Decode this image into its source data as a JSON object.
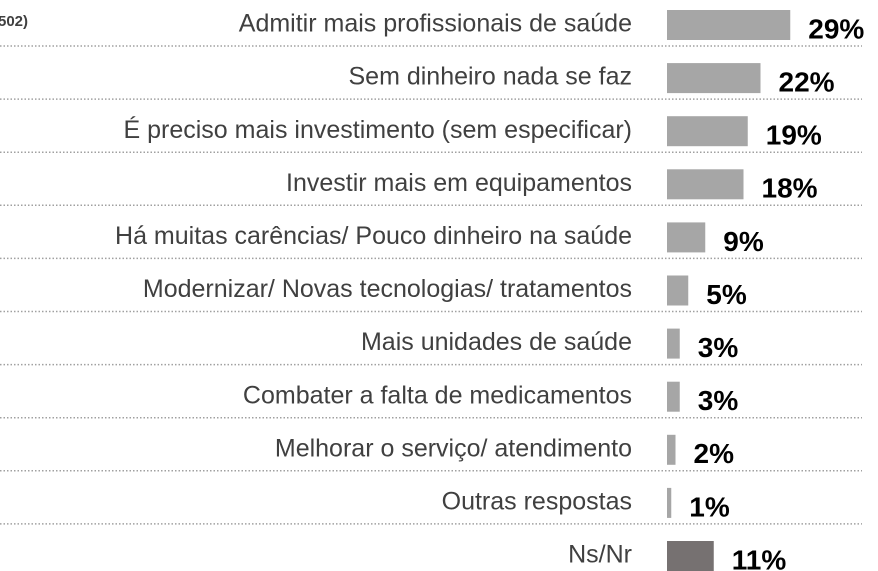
{
  "chart_data": {
    "type": "bar",
    "note": "502)",
    "categories": [
      "Admitir mais profissionais de saúde",
      "Sem dinheiro nada se faz",
      "É preciso mais investimento (sem especificar)",
      "Investir mais em equipamentos",
      "Há muitas carências/ Pouco dinheiro na saúde",
      "Modernizar/ Novas tecnologias/ tratamentos",
      "Mais unidades de saúde",
      "Combater a falta de medicamentos",
      "Melhorar o serviço/ atendimento",
      "Outras respostas",
      "Ns/Nr"
    ],
    "values": [
      29,
      22,
      19,
      18,
      9,
      5,
      3,
      3,
      2,
      1,
      11
    ],
    "value_labels": [
      "29%",
      "22%",
      "19%",
      "18%",
      "9%",
      "5%",
      "3%",
      "3%",
      "2%",
      "1%",
      "11%"
    ],
    "colors": [
      "#a6a6a6",
      "#a6a6a6",
      "#a6a6a6",
      "#a6a6a6",
      "#a6a6a6",
      "#a6a6a6",
      "#a6a6a6",
      "#a6a6a6",
      "#a6a6a6",
      "#a6a6a6",
      "#767171"
    ]
  }
}
